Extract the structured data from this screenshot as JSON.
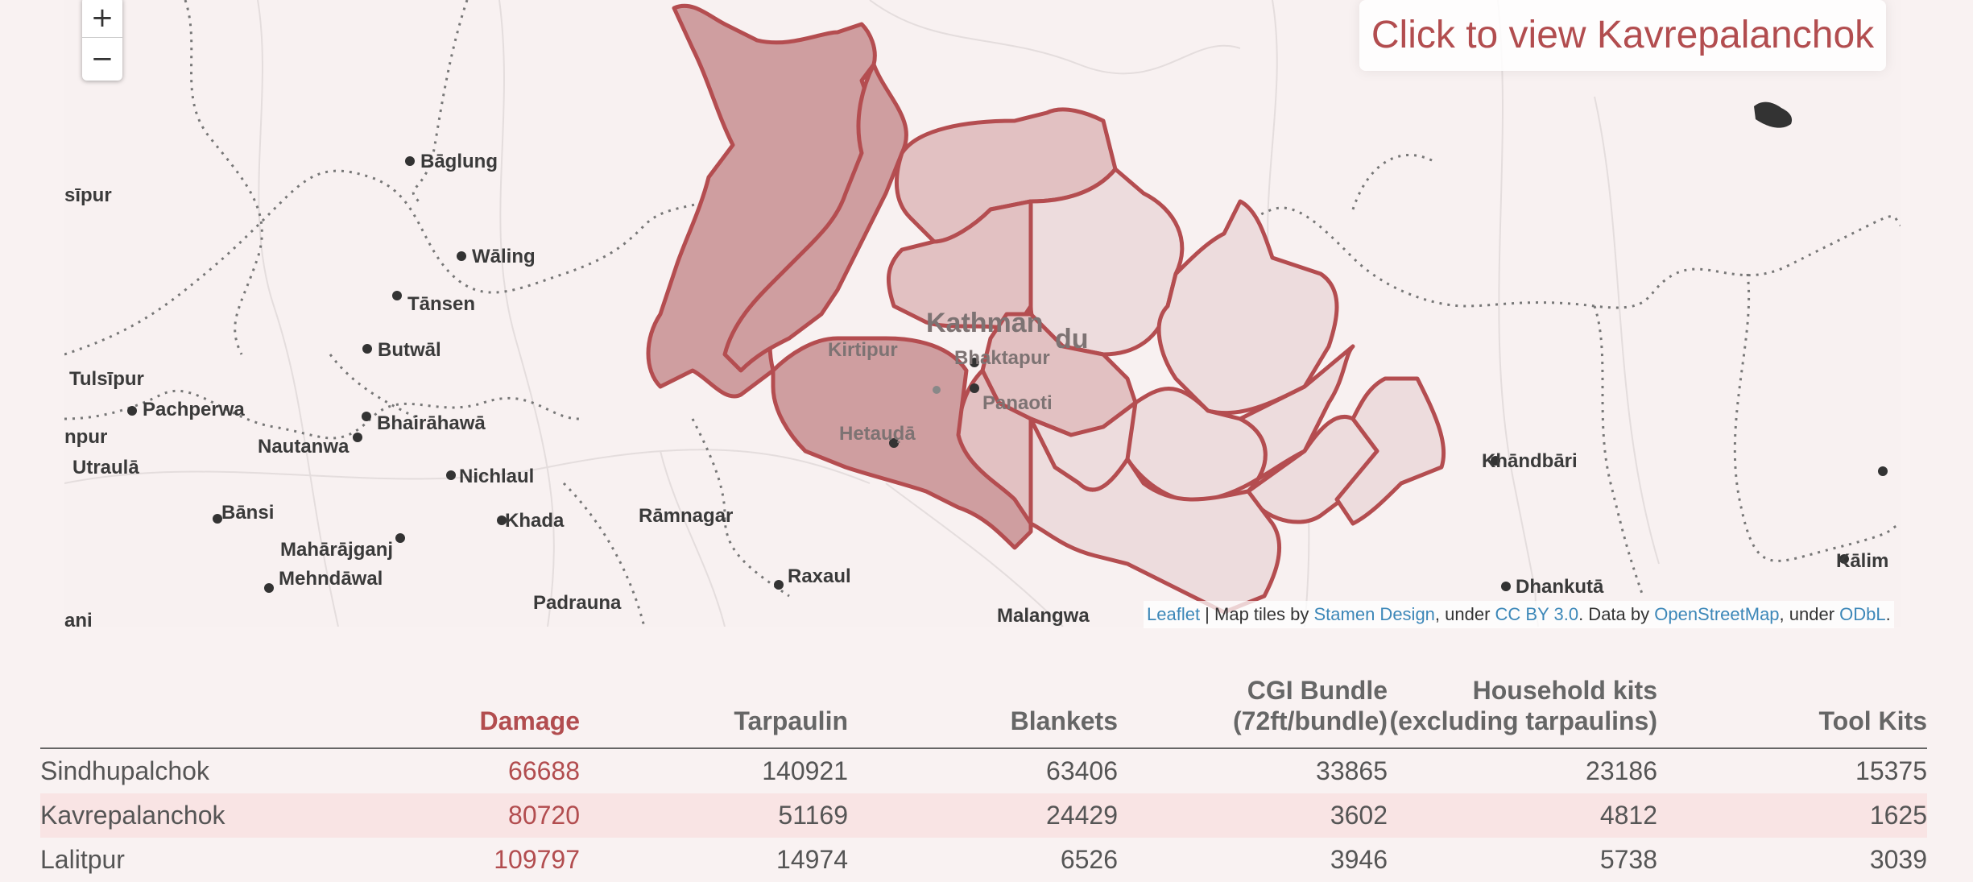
{
  "map": {
    "zoom_in": "+",
    "zoom_out": "−",
    "info_text": "Click to view Kavrepalanchok",
    "attribution": {
      "leaflet": "Leaflet",
      "sep": " | Map tiles by ",
      "stamen": "Stamen Design",
      "under1": ", under ",
      "ccby": "CC BY 3.0",
      "data_by": ". Data by ",
      "osm": "OpenStreetMap",
      "under2": ", under ",
      "odbl": "ODbL",
      "end": "."
    },
    "places": {
      "baglung_top": "Bāglung",
      "baglung": "Bāglung",
      "waling": "Wāling",
      "tansen": "Tānsen",
      "butwal": "Butwāl",
      "tulsipur": "Tulsīpur",
      "pachperwa": "Pachperwa",
      "nautanwa": "Nautanwa",
      "bhairahawa": "Bhairāhawā",
      "utraula": "Utraulā",
      "nichlaul": "Nichlaul",
      "bansi": "Bānsi",
      "khada": "Khada",
      "ramnagar": "Rāmnagar",
      "maharajganj": "Mahārājganj",
      "mehndawal": "Mehndāwal",
      "raxaul": "Raxaul",
      "padrauna": "Padrauna",
      "malangwa": "Malangwa",
      "kathmandu_a": "Kathman",
      "kathmandu_b": "du",
      "kirtipur": "Kirtipur",
      "bhaktapur": "Bhaktapur",
      "panaoti": "Panaoti",
      "hetauda": "Hetauḍā",
      "khandbari": "Khāndbāri",
      "dhankuta": "Dhankutā",
      "kalim": "Kālim",
      "sipur": "sīpur",
      "npur": "npur",
      "ani": "ani"
    }
  },
  "table": {
    "headers": {
      "district": "",
      "damage": "Damage",
      "tarpaulin": "Tarpaulin",
      "blankets": "Blankets",
      "cgi_line1": "CGI Bundle",
      "cgi_line2": "(72ft/bundle)",
      "kits_line1": "Household kits",
      "kits_line2": "(excluding tarpaulins)",
      "tools": "Tool Kits"
    },
    "rows": [
      {
        "district": "Sindhupalchok",
        "damage": "66688",
        "tarpaulin": "140921",
        "blankets": "63406",
        "cgi": "33865",
        "kits": "23186",
        "tools": "15375"
      },
      {
        "district": "Kavrepalanchok",
        "damage": "80720",
        "tarpaulin": "51169",
        "blankets": "24429",
        "cgi": "3602",
        "kits": "4812",
        "tools": "1625"
      },
      {
        "district": "Lalitpur",
        "damage": "109797",
        "tarpaulin": "14974",
        "blankets": "6526",
        "cgi": "3946",
        "kits": "5738",
        "tools": "3039"
      }
    ]
  },
  "colors": {
    "accent": "#b24d4f",
    "district_dark": "#cf9ea0",
    "district_mid": "#e2c1c2",
    "district_light": "#eddcdd",
    "row_highlight": "#f9e4e4"
  }
}
